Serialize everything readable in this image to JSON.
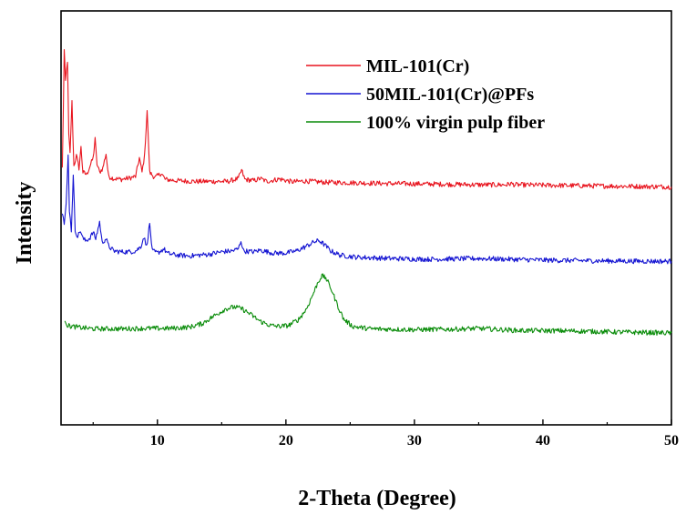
{
  "chart_data": {
    "type": "line",
    "title": "",
    "xlabel": "2-Theta (Degree)",
    "ylabel": "Intensity",
    "xlim": [
      2.5,
      50
    ],
    "xticks": [
      10,
      20,
      30,
      40,
      50
    ],
    "y_tick_labels": false,
    "legend_position": "top-right",
    "grid": false,
    "series": [
      {
        "name": "MIL-101(Cr)",
        "color": "#e8141e",
        "points": [
          [
            2.6,
            0.62
          ],
          [
            2.75,
            0.905
          ],
          [
            2.85,
            0.83
          ],
          [
            3.0,
            0.88
          ],
          [
            3.1,
            0.7
          ],
          [
            3.2,
            0.655
          ],
          [
            3.35,
            0.78
          ],
          [
            3.5,
            0.625
          ],
          [
            3.7,
            0.65
          ],
          [
            3.9,
            0.62
          ],
          [
            4.05,
            0.67
          ],
          [
            4.2,
            0.61
          ],
          [
            4.5,
            0.605
          ],
          [
            4.75,
            0.625
          ],
          [
            5.0,
            0.645
          ],
          [
            5.15,
            0.69
          ],
          [
            5.3,
            0.63
          ],
          [
            5.5,
            0.61
          ],
          [
            5.75,
            0.62
          ],
          [
            6.0,
            0.655
          ],
          [
            6.2,
            0.6
          ],
          [
            6.6,
            0.595
          ],
          [
            7.2,
            0.593
          ],
          [
            7.8,
            0.596
          ],
          [
            8.3,
            0.6
          ],
          [
            8.6,
            0.645
          ],
          [
            8.8,
            0.61
          ],
          [
            9.0,
            0.65
          ],
          [
            9.2,
            0.76
          ],
          [
            9.4,
            0.61
          ],
          [
            9.8,
            0.597
          ],
          [
            10.3,
            0.608
          ],
          [
            10.6,
            0.593
          ],
          [
            11.5,
            0.59
          ],
          [
            13.0,
            0.588
          ],
          [
            15.5,
            0.588
          ],
          [
            16.3,
            0.595
          ],
          [
            16.55,
            0.615
          ],
          [
            16.8,
            0.593
          ],
          [
            17.5,
            0.59
          ],
          [
            18.0,
            0.595
          ],
          [
            18.5,
            0.588
          ],
          [
            19.5,
            0.594
          ],
          [
            20.5,
            0.587
          ],
          [
            21.5,
            0.589
          ],
          [
            23.0,
            0.586
          ],
          [
            25.0,
            0.585
          ],
          [
            28.0,
            0.583
          ],
          [
            31.0,
            0.582
          ],
          [
            35.0,
            0.58
          ],
          [
            37.2,
            0.58
          ],
          [
            37.5,
            0.583
          ],
          [
            37.8,
            0.58
          ],
          [
            40.0,
            0.579
          ],
          [
            45.0,
            0.577
          ],
          [
            50.0,
            0.575
          ]
        ]
      },
      {
        "name": "50MIL-101(Cr)@PFs",
        "color": "#1414d2",
        "points": [
          [
            2.6,
            0.515
          ],
          [
            2.75,
            0.485
          ],
          [
            2.9,
            0.53
          ],
          [
            3.05,
            0.65
          ],
          [
            3.15,
            0.52
          ],
          [
            3.3,
            0.47
          ],
          [
            3.45,
            0.6
          ],
          [
            3.6,
            0.47
          ],
          [
            3.8,
            0.455
          ],
          [
            4.0,
            0.47
          ],
          [
            4.2,
            0.45
          ],
          [
            4.4,
            0.445
          ],
          [
            4.7,
            0.45
          ],
          [
            5.0,
            0.465
          ],
          [
            5.2,
            0.45
          ],
          [
            5.5,
            0.49
          ],
          [
            5.7,
            0.44
          ],
          [
            6.0,
            0.45
          ],
          [
            6.2,
            0.432
          ],
          [
            6.6,
            0.42
          ],
          [
            7.2,
            0.418
          ],
          [
            7.8,
            0.418
          ],
          [
            8.3,
            0.42
          ],
          [
            8.7,
            0.43
          ],
          [
            8.95,
            0.455
          ],
          [
            9.15,
            0.43
          ],
          [
            9.4,
            0.485
          ],
          [
            9.6,
            0.42
          ],
          [
            10.0,
            0.415
          ],
          [
            10.5,
            0.425
          ],
          [
            10.8,
            0.414
          ],
          [
            11.5,
            0.41
          ],
          [
            12.5,
            0.408
          ],
          [
            14.0,
            0.412
          ],
          [
            15.0,
            0.418
          ],
          [
            15.8,
            0.42
          ],
          [
            16.3,
            0.425
          ],
          [
            16.5,
            0.445
          ],
          [
            16.7,
            0.42
          ],
          [
            17.5,
            0.418
          ],
          [
            18.0,
            0.422
          ],
          [
            19.0,
            0.415
          ],
          [
            20.0,
            0.415
          ],
          [
            20.8,
            0.42
          ],
          [
            21.5,
            0.43
          ],
          [
            22.2,
            0.442
          ],
          [
            22.6,
            0.445
          ],
          [
            23.0,
            0.435
          ],
          [
            23.5,
            0.42
          ],
          [
            24.2,
            0.41
          ],
          [
            25.5,
            0.405
          ],
          [
            28.0,
            0.402
          ],
          [
            31.0,
            0.4
          ],
          [
            35.0,
            0.402
          ],
          [
            40.0,
            0.398
          ],
          [
            45.0,
            0.396
          ],
          [
            50.0,
            0.395
          ]
        ]
      },
      {
        "name": "100% virgin pulp fiber",
        "color": "#0a8c0a",
        "points": [
          [
            2.8,
            0.255
          ],
          [
            3.0,
            0.24
          ],
          [
            3.3,
            0.238
          ],
          [
            4.0,
            0.235
          ],
          [
            5.0,
            0.232
          ],
          [
            7.0,
            0.232
          ],
          [
            9.0,
            0.233
          ],
          [
            11.0,
            0.233
          ],
          [
            12.5,
            0.236
          ],
          [
            13.5,
            0.245
          ],
          [
            14.5,
            0.265
          ],
          [
            15.3,
            0.28
          ],
          [
            16.0,
            0.285
          ],
          [
            16.6,
            0.28
          ],
          [
            17.2,
            0.268
          ],
          [
            18.0,
            0.25
          ],
          [
            18.8,
            0.24
          ],
          [
            19.5,
            0.238
          ],
          [
            20.2,
            0.24
          ],
          [
            21.0,
            0.255
          ],
          [
            21.6,
            0.28
          ],
          [
            22.1,
            0.315
          ],
          [
            22.5,
            0.345
          ],
          [
            22.8,
            0.36
          ],
          [
            23.1,
            0.355
          ],
          [
            23.5,
            0.33
          ],
          [
            24.0,
            0.29
          ],
          [
            24.5,
            0.255
          ],
          [
            25.2,
            0.238
          ],
          [
            26.5,
            0.232
          ],
          [
            28.0,
            0.231
          ],
          [
            30.0,
            0.23
          ],
          [
            33.0,
            0.231
          ],
          [
            35.0,
            0.233
          ],
          [
            38.0,
            0.228
          ],
          [
            42.0,
            0.227
          ],
          [
            46.0,
            0.224
          ],
          [
            50.0,
            0.222
          ]
        ]
      }
    ]
  }
}
